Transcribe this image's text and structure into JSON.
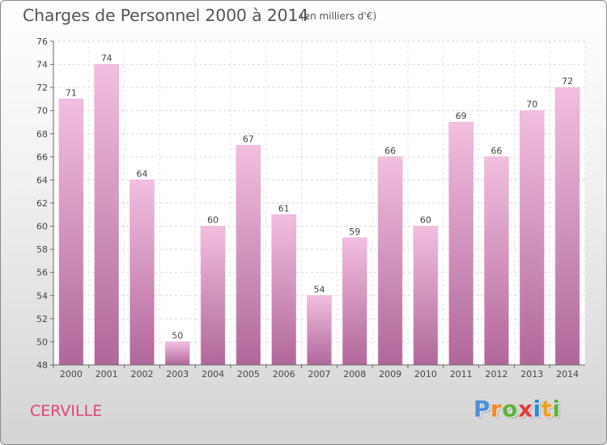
{
  "header": {
    "title": "Charges de Personnel 2000 à 2014",
    "subtitle": "(en milliers d'€)"
  },
  "footer": {
    "commune": "CERVILLE",
    "logo_letters": [
      "P",
      "r",
      "o",
      "x",
      "i",
      "t",
      "i"
    ],
    "logo_colors": [
      "#4a8fd8",
      "#f08a1c",
      "#5bb33c",
      "#e23a3a",
      "#2a8ad6",
      "#f0a11c",
      "#5bb33c"
    ]
  },
  "colors": {
    "bar_light": "#f2bfe0",
    "bar_dark": "#b0679a",
    "title_text": "#555555",
    "commune_text": "#e0437a"
  },
  "chart_data": {
    "type": "bar",
    "title": "Charges de Personnel 2000 à 2014",
    "subtitle": "(en milliers d'€)",
    "categories": [
      "2000",
      "2001",
      "2002",
      "2003",
      "2004",
      "2005",
      "2006",
      "2007",
      "2008",
      "2009",
      "2010",
      "2011",
      "2012",
      "2013",
      "2014"
    ],
    "values": [
      71,
      74,
      64,
      50,
      60,
      67,
      61,
      54,
      59,
      66,
      60,
      69,
      66,
      70,
      72
    ],
    "ylim": [
      48,
      76
    ],
    "yticks": [
      48,
      50,
      52,
      54,
      56,
      58,
      60,
      62,
      64,
      66,
      68,
      70,
      72,
      74,
      76
    ],
    "grid": true,
    "data_labels": true
  }
}
